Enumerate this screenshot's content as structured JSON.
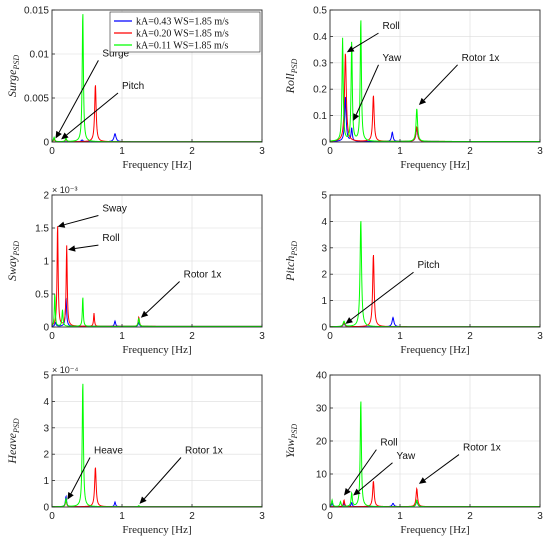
{
  "colors": {
    "blue": "#0000ff",
    "red": "#ff0000",
    "green": "#00ff00"
  },
  "legend": {
    "placement": "top-right of first panel",
    "entries": [
      "kA=0.43 WS=1.85 m/s",
      "kA=0.20 WS=1.85 m/s",
      "kA=0.11 WS=1.85 m/s"
    ]
  },
  "chart_data": [
    {
      "type": "line",
      "title": "",
      "xlabel": "Frequency [Hz]",
      "ylabel": {
        "main": "Surge",
        "sub": "PSD"
      },
      "xlim": [
        0,
        3
      ],
      "ylim": [
        0,
        0.015
      ],
      "xticks": [
        "0",
        "1",
        "2",
        "3"
      ],
      "yticks": [
        {
          "v": 0,
          "label": "0"
        },
        {
          "v": 0.005,
          "label": "0.005"
        },
        {
          "v": 0.01,
          "label": "0.01"
        },
        {
          "v": 0.015,
          "label": "0.015"
        }
      ],
      "multiplier": "",
      "grid": true,
      "series": [
        {
          "color": "blue",
          "baseline": 3e-05,
          "peaks": [
            {
              "f": 0.03,
              "a": 0.0004,
              "w": 0.02
            },
            {
              "f": 0.9,
              "a": 0.0009,
              "w": 0.035
            },
            {
              "f": 0.43,
              "a": 0.0002,
              "w": 0.03
            }
          ]
        },
        {
          "color": "red",
          "baseline": 3e-05,
          "peaks": [
            {
              "f": 0.03,
              "a": 0.0003,
              "w": 0.02
            },
            {
              "f": 0.62,
              "a": 0.0065,
              "w": 0.025
            },
            {
              "f": 0.2,
              "a": 0.0003,
              "w": 0.02
            }
          ]
        },
        {
          "color": "green",
          "baseline": 3e-05,
          "peaks": [
            {
              "f": 0.03,
              "a": 0.0005,
              "w": 0.02
            },
            {
              "f": 0.44,
              "a": 0.0148,
              "w": 0.02
            },
            {
              "f": 0.2,
              "a": 0.0004,
              "w": 0.02
            }
          ]
        }
      ],
      "annotations": [
        {
          "text": "Surge",
          "tx": 0.72,
          "ty": 0.0095,
          "ax": 0.05,
          "ay": 0.0004
        },
        {
          "text": "Pitch",
          "tx": 1.0,
          "ty": 0.0058,
          "ax": 0.13,
          "ay": 0.0003
        }
      ]
    },
    {
      "type": "line",
      "title": "",
      "xlabel": "Frequency [Hz]",
      "ylabel": {
        "main": "Roll",
        "sub": "PSD"
      },
      "xlim": [
        0,
        3
      ],
      "ylim": [
        0,
        0.5
      ],
      "xticks": [
        "0",
        "1",
        "2",
        "3"
      ],
      "yticks": [
        {
          "v": 0,
          "label": "0"
        },
        {
          "v": 0.1,
          "label": "0.1"
        },
        {
          "v": 0.2,
          "label": "0.2"
        },
        {
          "v": 0.3,
          "label": "0.3"
        },
        {
          "v": 0.4,
          "label": "0.4"
        },
        {
          "v": 0.5,
          "label": "0.5"
        }
      ],
      "multiplier": "",
      "grid": true,
      "series": [
        {
          "color": "blue",
          "baseline": 0.002,
          "peaks": [
            {
              "f": 0.22,
              "a": 0.17,
              "w": 0.025
            },
            {
              "f": 0.31,
              "a": 0.05,
              "w": 0.02
            },
            {
              "f": 0.89,
              "a": 0.035,
              "w": 0.025
            },
            {
              "f": 1.24,
              "a": 0.05,
              "w": 0.03
            }
          ]
        },
        {
          "color": "red",
          "baseline": 0.002,
          "peaks": [
            {
              "f": 0.22,
              "a": 0.335,
              "w": 0.03
            },
            {
              "f": 0.62,
              "a": 0.175,
              "w": 0.025
            },
            {
              "f": 1.24,
              "a": 0.055,
              "w": 0.03
            }
          ]
        },
        {
          "color": "green",
          "baseline": 0.002,
          "peaks": [
            {
              "f": 0.18,
              "a": 0.39,
              "w": 0.02
            },
            {
              "f": 0.31,
              "a": 0.38,
              "w": 0.02
            },
            {
              "f": 0.44,
              "a": 0.465,
              "w": 0.02
            },
            {
              "f": 1.24,
              "a": 0.125,
              "w": 0.025
            }
          ]
        }
      ],
      "annotations": [
        {
          "text": "Roll",
          "tx": 0.75,
          "ty": 0.42,
          "ax": 0.24,
          "ay": 0.34
        },
        {
          "text": "Yaw",
          "tx": 0.75,
          "ty": 0.3,
          "ax": 0.33,
          "ay": 0.08
        },
        {
          "text": "Rotor 1x",
          "tx": 1.88,
          "ty": 0.3,
          "ax": 1.27,
          "ay": 0.14
        }
      ]
    },
    {
      "type": "line",
      "title": "",
      "xlabel": "Frequency [Hz]",
      "ylabel": {
        "main": "Sway",
        "sub": "PSD"
      },
      "xlim": [
        0,
        3
      ],
      "ylim": [
        0,
        2
      ],
      "xticks": [
        "0",
        "1",
        "2",
        "3"
      ],
      "yticks": [
        {
          "v": 0,
          "label": "0"
        },
        {
          "v": 0.5,
          "label": "0.5"
        },
        {
          "v": 1,
          "label": "1"
        },
        {
          "v": 1.5,
          "label": "1.5"
        },
        {
          "v": 2,
          "label": "2"
        }
      ],
      "multiplier": "× 10⁻³",
      "grid": true,
      "series": [
        {
          "color": "blue",
          "baseline": 0.01,
          "peaks": [
            {
              "f": 0.05,
              "a": 0.06,
              "w": 0.02
            },
            {
              "f": 0.2,
              "a": 0.44,
              "w": 0.02
            },
            {
              "f": 0.9,
              "a": 0.08,
              "w": 0.02
            },
            {
              "f": 1.24,
              "a": 0.06,
              "w": 0.02
            }
          ]
        },
        {
          "color": "red",
          "baseline": 0.01,
          "peaks": [
            {
              "f": 0.08,
              "a": 1.55,
              "w": 0.018
            },
            {
              "f": 0.21,
              "a": 1.22,
              "w": 0.018
            },
            {
              "f": 0.6,
              "a": 0.2,
              "w": 0.015
            },
            {
              "f": 1.24,
              "a": 0.14,
              "w": 0.02
            }
          ]
        },
        {
          "color": "green",
          "baseline": 0.01,
          "peaks": [
            {
              "f": 0.04,
              "a": 0.5,
              "w": 0.015
            },
            {
              "f": 0.15,
              "a": 0.25,
              "w": 0.018
            },
            {
              "f": 0.44,
              "a": 0.45,
              "w": 0.015
            },
            {
              "f": 1.24,
              "a": 0.12,
              "w": 0.02
            }
          ]
        }
      ],
      "annotations": [
        {
          "text": "Sway",
          "tx": 0.72,
          "ty": 1.72,
          "ax": 0.08,
          "ay": 1.52
        },
        {
          "text": "Roll",
          "tx": 0.72,
          "ty": 1.27,
          "ax": 0.23,
          "ay": 1.17
        },
        {
          "text": "Rotor 1x",
          "tx": 1.88,
          "ty": 0.72,
          "ax": 1.27,
          "ay": 0.14
        }
      ]
    },
    {
      "type": "line",
      "title": "",
      "xlabel": "Frequency [Hz]",
      "ylabel": {
        "main": "Pitch",
        "sub": "PSD"
      },
      "xlim": [
        0,
        3
      ],
      "ylim": [
        0,
        5
      ],
      "xticks": [
        "0",
        "1",
        "2",
        "3"
      ],
      "yticks": [
        {
          "v": 0,
          "label": "0"
        },
        {
          "v": 1,
          "label": "1"
        },
        {
          "v": 2,
          "label": "2"
        },
        {
          "v": 3,
          "label": "3"
        },
        {
          "v": 4,
          "label": "4"
        },
        {
          "v": 5,
          "label": "5"
        }
      ],
      "multiplier": "",
      "grid": true,
      "series": [
        {
          "color": "blue",
          "baseline": 0.01,
          "peaks": [
            {
              "f": 0.2,
              "a": 0.12,
              "w": 0.03
            },
            {
              "f": 0.9,
              "a": 0.35,
              "w": 0.03
            }
          ]
        },
        {
          "color": "red",
          "baseline": 0.01,
          "peaks": [
            {
              "f": 0.2,
              "a": 0.15,
              "w": 0.03
            },
            {
              "f": 0.62,
              "a": 2.75,
              "w": 0.025
            }
          ]
        },
        {
          "color": "green",
          "baseline": 0.01,
          "peaks": [
            {
              "f": 0.2,
              "a": 0.2,
              "w": 0.03
            },
            {
              "f": 0.44,
              "a": 4.05,
              "w": 0.025
            }
          ]
        }
      ],
      "annotations": [
        {
          "text": "Pitch",
          "tx": 1.25,
          "ty": 2.15,
          "ax": 0.22,
          "ay": 0.12
        }
      ]
    },
    {
      "type": "line",
      "title": "",
      "xlabel": "Frequency [Hz]",
      "ylabel": {
        "main": "Heave",
        "sub": "PSD"
      },
      "xlim": [
        0,
        3
      ],
      "ylim": [
        0,
        5
      ],
      "xticks": [
        "0",
        "1",
        "2",
        "3"
      ],
      "yticks": [
        {
          "v": 0,
          "label": "0"
        },
        {
          "v": 1,
          "label": "1"
        },
        {
          "v": 2,
          "label": "2"
        },
        {
          "v": 3,
          "label": "3"
        },
        {
          "v": 4,
          "label": "4"
        },
        {
          "v": 5,
          "label": "5"
        }
      ],
      "multiplier": "× 10⁻⁴",
      "grid": true,
      "series": [
        {
          "color": "blue",
          "baseline": 0.01,
          "peaks": [
            {
              "f": 0.2,
              "a": 0.4,
              "w": 0.02
            },
            {
              "f": 0.9,
              "a": 0.18,
              "w": 0.02
            }
          ]
        },
        {
          "color": "red",
          "baseline": 0.01,
          "peaks": [
            {
              "f": 0.2,
              "a": 0.25,
              "w": 0.02
            },
            {
              "f": 0.62,
              "a": 1.5,
              "w": 0.025
            }
          ]
        },
        {
          "color": "green",
          "baseline": 0.01,
          "peaks": [
            {
              "f": 0.2,
              "a": 0.3,
              "w": 0.02
            },
            {
              "f": 0.44,
              "a": 4.75,
              "w": 0.02
            },
            {
              "f": 1.24,
              "a": 0.04,
              "w": 0.02
            }
          ]
        }
      ],
      "annotations": [
        {
          "text": "Heave",
          "tx": 0.6,
          "ty": 1.95,
          "ax": 0.22,
          "ay": 0.28
        },
        {
          "text": "Rotor 1x",
          "tx": 1.9,
          "ty": 1.95,
          "ax": 1.25,
          "ay": 0.12
        }
      ]
    },
    {
      "type": "line",
      "title": "",
      "xlabel": "Frequency [Hz]",
      "ylabel": {
        "main": "Yaw",
        "sub": "PSD"
      },
      "xlim": [
        0,
        3
      ],
      "ylim": [
        0,
        40
      ],
      "xticks": [
        "0",
        "1",
        "2",
        "3"
      ],
      "yticks": [
        {
          "v": 0,
          "label": "0"
        },
        {
          "v": 10,
          "label": "10"
        },
        {
          "v": 20,
          "label": "20"
        },
        {
          "v": 30,
          "label": "30"
        },
        {
          "v": 40,
          "label": "40"
        }
      ],
      "multiplier": "",
      "grid": true,
      "series": [
        {
          "color": "blue",
          "baseline": 0.1,
          "peaks": [
            {
              "f": 0.03,
              "a": 1.0,
              "w": 0.02
            },
            {
              "f": 0.2,
              "a": 1.0,
              "w": 0.02
            },
            {
              "f": 0.31,
              "a": 1.2,
              "w": 0.02
            },
            {
              "f": 0.9,
              "a": 1.0,
              "w": 0.03
            },
            {
              "f": 1.24,
              "a": 1.5,
              "w": 0.03
            }
          ]
        },
        {
          "color": "red",
          "baseline": 0.1,
          "peaks": [
            {
              "f": 0.2,
              "a": 2.0,
              "w": 0.02
            },
            {
              "f": 0.62,
              "a": 7.8,
              "w": 0.025
            },
            {
              "f": 1.24,
              "a": 5.5,
              "w": 0.025
            }
          ]
        },
        {
          "color": "green",
          "baseline": 0.1,
          "peaks": [
            {
              "f": 0.03,
              "a": 2.0,
              "w": 0.02
            },
            {
              "f": 0.15,
              "a": 1.5,
              "w": 0.02
            },
            {
              "f": 0.31,
              "a": 4.0,
              "w": 0.02
            },
            {
              "f": 0.44,
              "a": 32.5,
              "w": 0.02
            },
            {
              "f": 1.24,
              "a": 2.0,
              "w": 0.025
            }
          ]
        }
      ],
      "annotations": [
        {
          "text": "Roll",
          "tx": 0.72,
          "ty": 18.0,
          "ax": 0.2,
          "ay": 3.5
        },
        {
          "text": "Yaw",
          "tx": 0.95,
          "ty": 14.0,
          "ax": 0.33,
          "ay": 3.5
        },
        {
          "text": "Rotor 1x",
          "tx": 1.9,
          "ty": 16.5,
          "ax": 1.27,
          "ay": 7.0
        }
      ]
    }
  ]
}
